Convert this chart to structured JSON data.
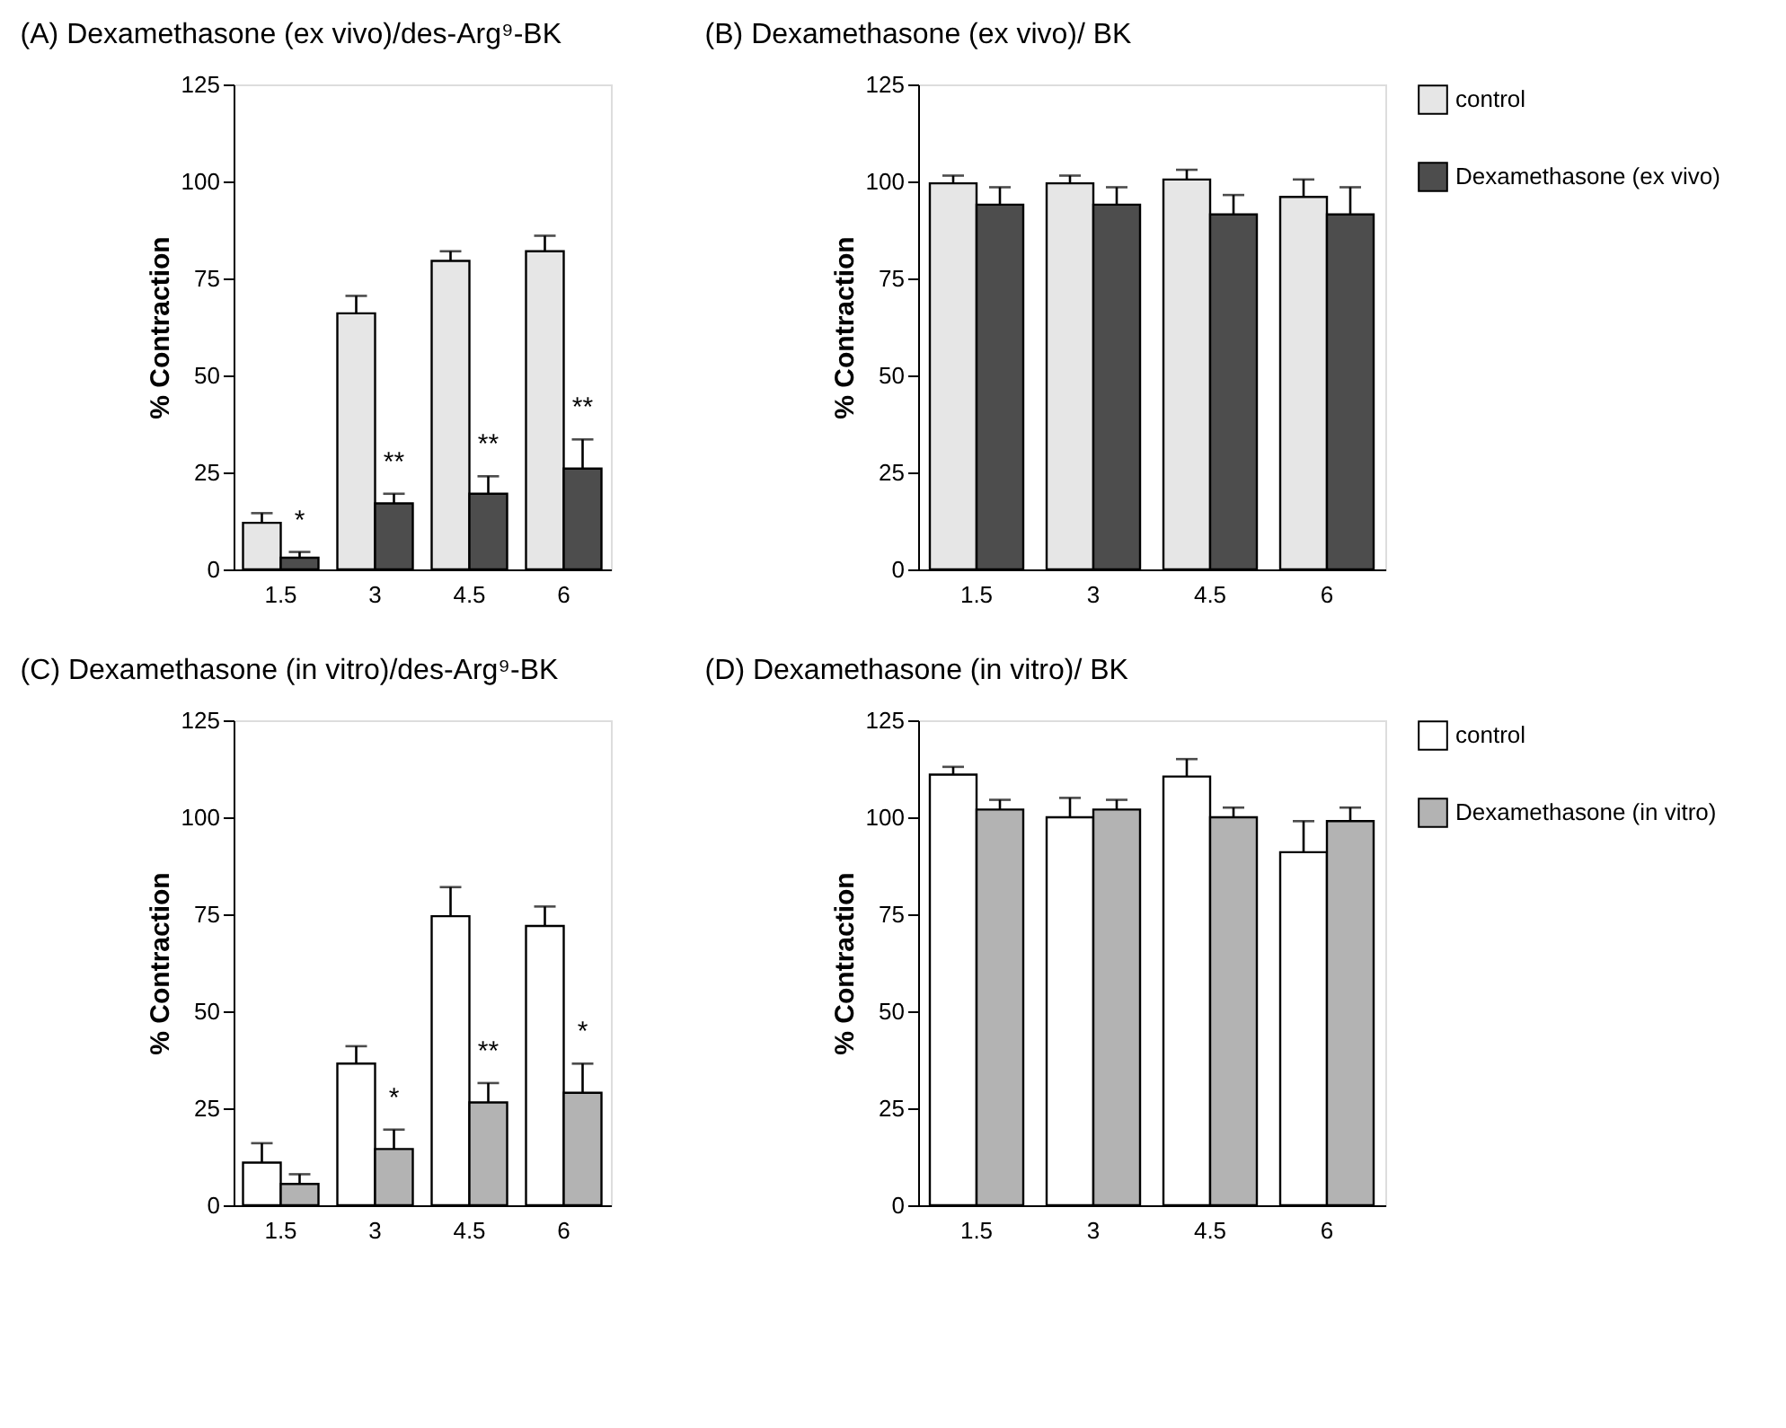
{
  "chart_data": [
    {
      "type": "bar",
      "title": "(A)   Dexamethasone (ex vivo)/des-Arg⁹-BK",
      "ylabel": "% Contraction",
      "categories": [
        "1.5",
        "3",
        "4.5",
        "6"
      ],
      "ylim": [
        0,
        125
      ],
      "yticks": [
        0,
        25,
        50,
        75,
        100,
        125
      ],
      "grid": false,
      "legend": false,
      "series": [
        {
          "color": "#e6e6e6",
          "values": [
            12,
            66,
            79.5,
            82
          ],
          "errors": [
            [
              12,
              14.5
            ],
            [
              66,
              70.5
            ],
            [
              79.5,
              82
            ],
            [
              82,
              86
            ]
          ]
        },
        {
          "color": "#4d4d4d",
          "values": [
            3,
            17,
            19.5,
            26
          ],
          "errors": [
            [
              3,
              4.5
            ],
            [
              17,
              19.5
            ],
            [
              19.5,
              24
            ],
            [
              26,
              33.5
            ]
          ]
        }
      ],
      "annotations": [
        {
          "text": "*",
          "x": "1.5",
          "y": 4.5
        },
        {
          "text": "**",
          "x": "3",
          "y": 19.5
        },
        {
          "text": "**",
          "x": "4.5",
          "y": 24
        },
        {
          "text": "**",
          "x": "6",
          "y": 33.5
        }
      ]
    },
    {
      "type": "bar",
      "title": "(B)   Dexamethasone (ex vivo)/ BK",
      "ylabel": "% Contraction",
      "categories": [
        "1.5",
        "3",
        "4.5",
        "6"
      ],
      "ylim": [
        0,
        125
      ],
      "yticks": [
        0,
        25,
        50,
        75,
        100,
        125
      ],
      "grid": false,
      "legend": "right",
      "series": [
        {
          "name": "control",
          "color": "#e6e6e6",
          "values": [
            99.5,
            99.5,
            100.5,
            96
          ],
          "errors": [
            [
              99.5,
              101.5
            ],
            [
              99.5,
              101.5
            ],
            [
              100.5,
              103
            ],
            [
              96,
              100.5
            ]
          ]
        },
        {
          "name": "Dexamethasone (ex vivo)",
          "color": "#4d4d4d",
          "values": [
            94,
            94,
            91.5,
            91.5
          ],
          "errors": [
            [
              94,
              98.5
            ],
            [
              94,
              98.5
            ],
            [
              91.5,
              96.5
            ],
            [
              91.5,
              98.5
            ]
          ]
        }
      ]
    },
    {
      "type": "bar",
      "title": "(C)   Dexamethasone (in vitro)/des-Arg⁹-BK",
      "ylabel": "% Contraction",
      "categories": [
        "1.5",
        "3",
        "4.5",
        "6"
      ],
      "ylim": [
        0,
        125
      ],
      "yticks": [
        0,
        25,
        50,
        75,
        100,
        125
      ],
      "grid": false,
      "legend": false,
      "series": [
        {
          "color": "#ffffff",
          "values": [
            11,
            36.5,
            74.5,
            72
          ],
          "errors": [
            [
              11,
              16
            ],
            [
              36.5,
              41
            ],
            [
              74.5,
              82
            ],
            [
              72,
              77
            ]
          ]
        },
        {
          "color": "#b3b3b3",
          "values": [
            5.5,
            14.5,
            26.5,
            29
          ],
          "errors": [
            [
              5.5,
              8
            ],
            [
              14.5,
              19.5
            ],
            [
              26.5,
              31.5
            ],
            [
              29,
              36.5
            ]
          ]
        }
      ],
      "annotations": [
        {
          "text": "*",
          "x": "3",
          "y": 19.5
        },
        {
          "text": "**",
          "x": "4.5",
          "y": 31.5
        },
        {
          "text": "*",
          "x": "6",
          "y": 36.5
        }
      ]
    },
    {
      "type": "bar",
      "title": "(D)   Dexamethasone (in vitro)/ BK",
      "ylabel": "% Contraction",
      "categories": [
        "1.5",
        "3",
        "4.5",
        "6"
      ],
      "ylim": [
        0,
        125
      ],
      "yticks": [
        0,
        25,
        50,
        75,
        100,
        125
      ],
      "grid": false,
      "legend": "right",
      "series": [
        {
          "name": "control",
          "color": "#ffffff",
          "values": [
            111,
            100,
            110.5,
            91
          ],
          "errors": [
            [
              111,
              113
            ],
            [
              100,
              105
            ],
            [
              110.5,
              115
            ],
            [
              91,
              99
            ]
          ]
        },
        {
          "name": "Dexamethasone (in vitro)",
          "color": "#b3b3b3",
          "values": [
            102,
            102,
            100,
            99
          ],
          "errors": [
            [
              102,
              104.5
            ],
            [
              102,
              104.5
            ],
            [
              100,
              102.5
            ],
            [
              99,
              102.5
            ]
          ]
        }
      ]
    }
  ]
}
